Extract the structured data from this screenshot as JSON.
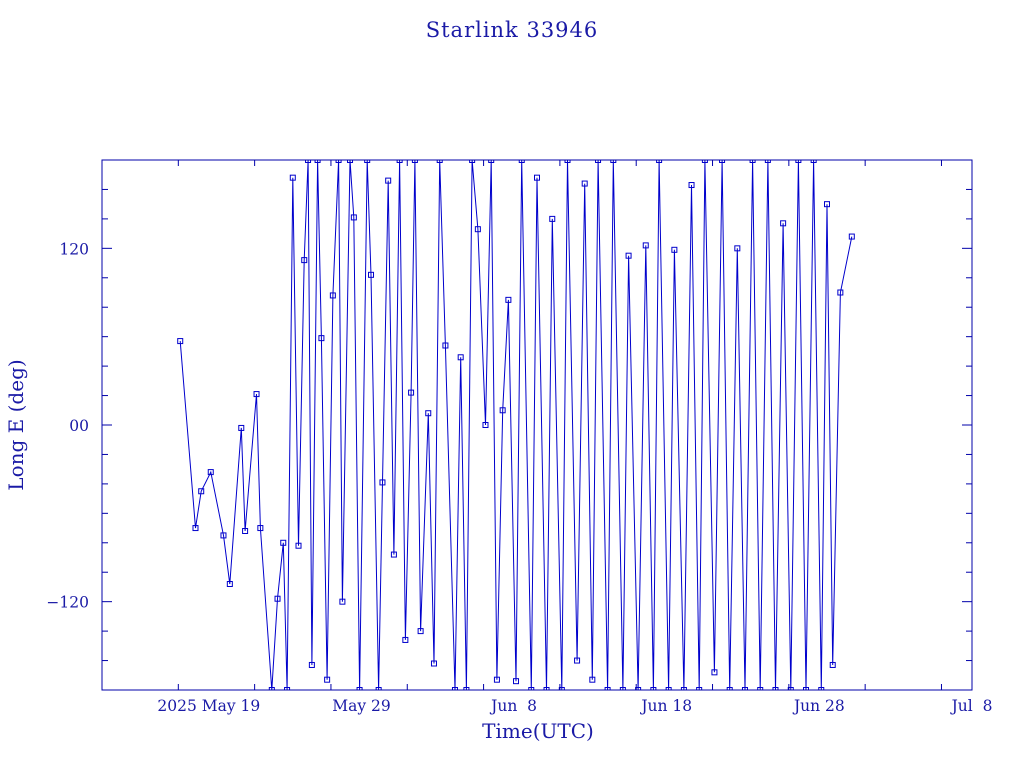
{
  "colors": {
    "accent": "#0000cc",
    "text": "#1a1aa6"
  },
  "chart_data": {
    "type": "line",
    "title": "Starlink 33946",
    "xlabel": "Time(UTC)",
    "ylabel": "Long E (deg)",
    "x_is_date": true,
    "xlim": [
      "2025-05-12",
      "2025-07-08"
    ],
    "ylim": [
      -180,
      180
    ],
    "xticks": [
      {
        "date": "2025-05-19",
        "label": "2025 May 19"
      },
      {
        "date": "2025-05-29",
        "label": "May 29"
      },
      {
        "date": "2025-06-08",
        "label": "Jun  8"
      },
      {
        "date": "2025-06-18",
        "label": "Jun 18"
      },
      {
        "date": "2025-06-28",
        "label": "Jun 28"
      },
      {
        "date": "2025-07-08",
        "label": "Jul  8"
      }
    ],
    "yticks": [
      {
        "value": 120,
        "label": "120"
      },
      {
        "value": 0,
        "label": "00"
      },
      {
        "value": -120,
        "label": "−120"
      }
    ],
    "grid": false,
    "series": [
      {
        "marker": "square",
        "points": [
          [
            "2025-05-17 03:00",
            57
          ],
          [
            "2025-05-18 03:00",
            -70
          ],
          [
            "2025-05-18 12:00",
            -45
          ],
          [
            "2025-05-19 03:00",
            -32
          ],
          [
            "2025-05-19 23:00",
            -75
          ],
          [
            "2025-05-20 09:00",
            -108
          ],
          [
            "2025-05-21 03:00",
            -2
          ],
          [
            "2025-05-21 09:00",
            -72
          ],
          [
            "2025-05-22 03:00",
            21
          ],
          [
            "2025-05-22 09:00",
            -70
          ],
          [
            "2025-05-23 03:00",
            -180
          ],
          [
            "2025-05-23 12:00",
            -118
          ],
          [
            "2025-05-23 21:00",
            -80
          ],
          [
            "2025-05-24 03:00",
            -180
          ],
          [
            "2025-05-24 12:00",
            168
          ],
          [
            "2025-05-24 21:00",
            -82
          ],
          [
            "2025-05-25 06:00",
            112
          ],
          [
            "2025-05-25 12:00",
            180
          ],
          [
            "2025-05-25 18:00",
            -163
          ],
          [
            "2025-05-26 03:00",
            180
          ],
          [
            "2025-05-26 09:00",
            59
          ],
          [
            "2025-05-26 18:00",
            -173
          ],
          [
            "2025-05-27 03:00",
            88
          ],
          [
            "2025-05-27 12:00",
            180
          ],
          [
            "2025-05-27 18:00",
            -120
          ],
          [
            "2025-05-28 06:00",
            180
          ],
          [
            "2025-05-28 12:00",
            141
          ],
          [
            "2025-05-28 21:00",
            -180
          ],
          [
            "2025-05-29 09:00",
            180
          ],
          [
            "2025-05-29 15:00",
            102
          ],
          [
            "2025-05-30 03:00",
            -180
          ],
          [
            "2025-05-30 09:00",
            -39
          ],
          [
            "2025-05-30 18:00",
            166
          ],
          [
            "2025-05-31 03:00",
            -88
          ],
          [
            "2025-05-31 12:00",
            180
          ],
          [
            "2025-05-31 21:00",
            -146
          ],
          [
            "2025-06-01 06:00",
            22
          ],
          [
            "2025-06-01 12:00",
            180
          ],
          [
            "2025-06-01 21:00",
            -140
          ],
          [
            "2025-06-02 09:00",
            8
          ],
          [
            "2025-06-02 18:00",
            -162
          ],
          [
            "2025-06-03 03:00",
            180
          ],
          [
            "2025-06-03 12:00",
            54
          ],
          [
            "2025-06-04 03:00",
            -180
          ],
          [
            "2025-06-04 12:00",
            46
          ],
          [
            "2025-06-04 21:00",
            -180
          ],
          [
            "2025-06-05 06:00",
            180
          ],
          [
            "2025-06-05 15:00",
            133
          ],
          [
            "2025-06-06 03:00",
            0
          ],
          [
            "2025-06-06 12:00",
            180
          ],
          [
            "2025-06-06 21:00",
            -173
          ],
          [
            "2025-06-07 06:00",
            10
          ],
          [
            "2025-06-07 15:00",
            85
          ],
          [
            "2025-06-08 03:00",
            -174
          ],
          [
            "2025-06-08 12:00",
            180
          ],
          [
            "2025-06-09 03:00",
            -180
          ],
          [
            "2025-06-09 12:00",
            168
          ],
          [
            "2025-06-10 03:00",
            -180
          ],
          [
            "2025-06-10 12:00",
            140
          ],
          [
            "2025-06-11 03:00",
            -180
          ],
          [
            "2025-06-11 12:00",
            180
          ],
          [
            "2025-06-12 03:00",
            -160
          ],
          [
            "2025-06-12 15:00",
            164
          ],
          [
            "2025-06-13 03:00",
            -173
          ],
          [
            "2025-06-13 12:00",
            180
          ],
          [
            "2025-06-14 03:00",
            -180
          ],
          [
            "2025-06-14 12:00",
            180
          ],
          [
            "2025-06-15 03:00",
            -180
          ],
          [
            "2025-06-15 12:00",
            115
          ],
          [
            "2025-06-16 03:00",
            -180
          ],
          [
            "2025-06-16 15:00",
            122
          ],
          [
            "2025-06-17 03:00",
            -180
          ],
          [
            "2025-06-17 12:00",
            180
          ],
          [
            "2025-06-18 03:00",
            -180
          ],
          [
            "2025-06-18 12:00",
            119
          ],
          [
            "2025-06-19 03:00",
            -180
          ],
          [
            "2025-06-19 15:00",
            163
          ],
          [
            "2025-06-20 03:00",
            -180
          ],
          [
            "2025-06-20 12:00",
            180
          ],
          [
            "2025-06-21 03:00",
            -168
          ],
          [
            "2025-06-21 15:00",
            180
          ],
          [
            "2025-06-22 03:00",
            -180
          ],
          [
            "2025-06-22 15:00",
            120
          ],
          [
            "2025-06-23 03:00",
            -180
          ],
          [
            "2025-06-23 15:00",
            180
          ],
          [
            "2025-06-24 03:00",
            -180
          ],
          [
            "2025-06-24 15:00",
            180
          ],
          [
            "2025-06-25 03:00",
            -180
          ],
          [
            "2025-06-25 15:00",
            137
          ],
          [
            "2025-06-26 03:00",
            -180
          ],
          [
            "2025-06-26 15:00",
            180
          ],
          [
            "2025-06-27 03:00",
            -180
          ],
          [
            "2025-06-27 15:00",
            180
          ],
          [
            "2025-06-28 03:00",
            -180
          ],
          [
            "2025-06-28 12:00",
            150
          ],
          [
            "2025-06-28 21:00",
            -163
          ],
          [
            "2025-06-29 09:00",
            90
          ],
          [
            "2025-06-30 03:00",
            128
          ]
        ]
      }
    ]
  }
}
